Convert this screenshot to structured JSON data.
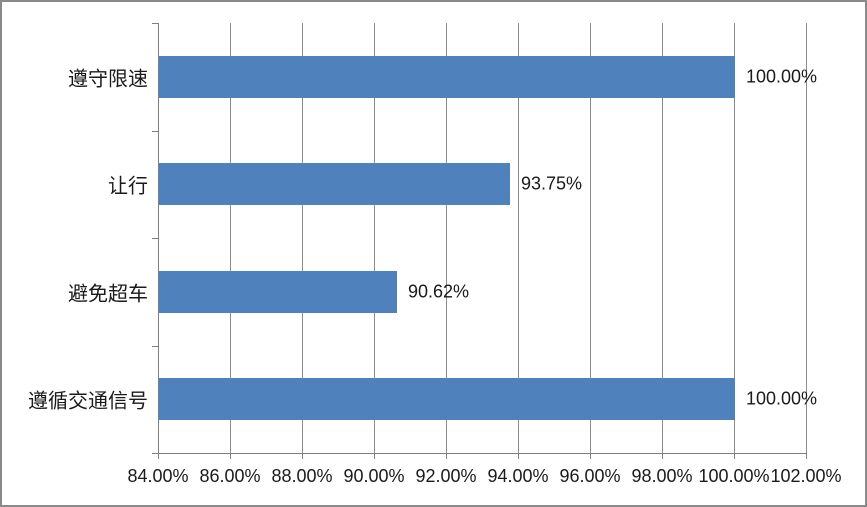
{
  "window": {
    "background": "#ffffff",
    "border_color": "#8a8a8a"
  },
  "chart_data": {
    "type": "bar",
    "orientation": "horizontal",
    "title": "",
    "xlabel": "",
    "ylabel": "",
    "categories": [
      "遵守限速",
      "让行",
      "避免超车",
      "遵循交通信号"
    ],
    "values": [
      100.0,
      93.75,
      90.62,
      100.0
    ],
    "data_labels": [
      "100.00%",
      "93.75%",
      "90.62%",
      "100.00%"
    ],
    "x_tick_values": [
      84,
      86,
      88,
      90,
      92,
      94,
      96,
      98,
      100,
      102
    ],
    "x_tick_labels": [
      "84.00%",
      "86.00%",
      "88.00%",
      "90.00%",
      "92.00%",
      "94.00%",
      "96.00%",
      "98.00%",
      "100.00%",
      "102.00%"
    ],
    "xlim": [
      84,
      102
    ],
    "grid": "vertical-only",
    "legend": "none",
    "bar_color": "#4f81bd",
    "gridline_color": "#8c8c8c",
    "axis_color": "#7f7f7f",
    "label_color": "#1a1a1a"
  }
}
